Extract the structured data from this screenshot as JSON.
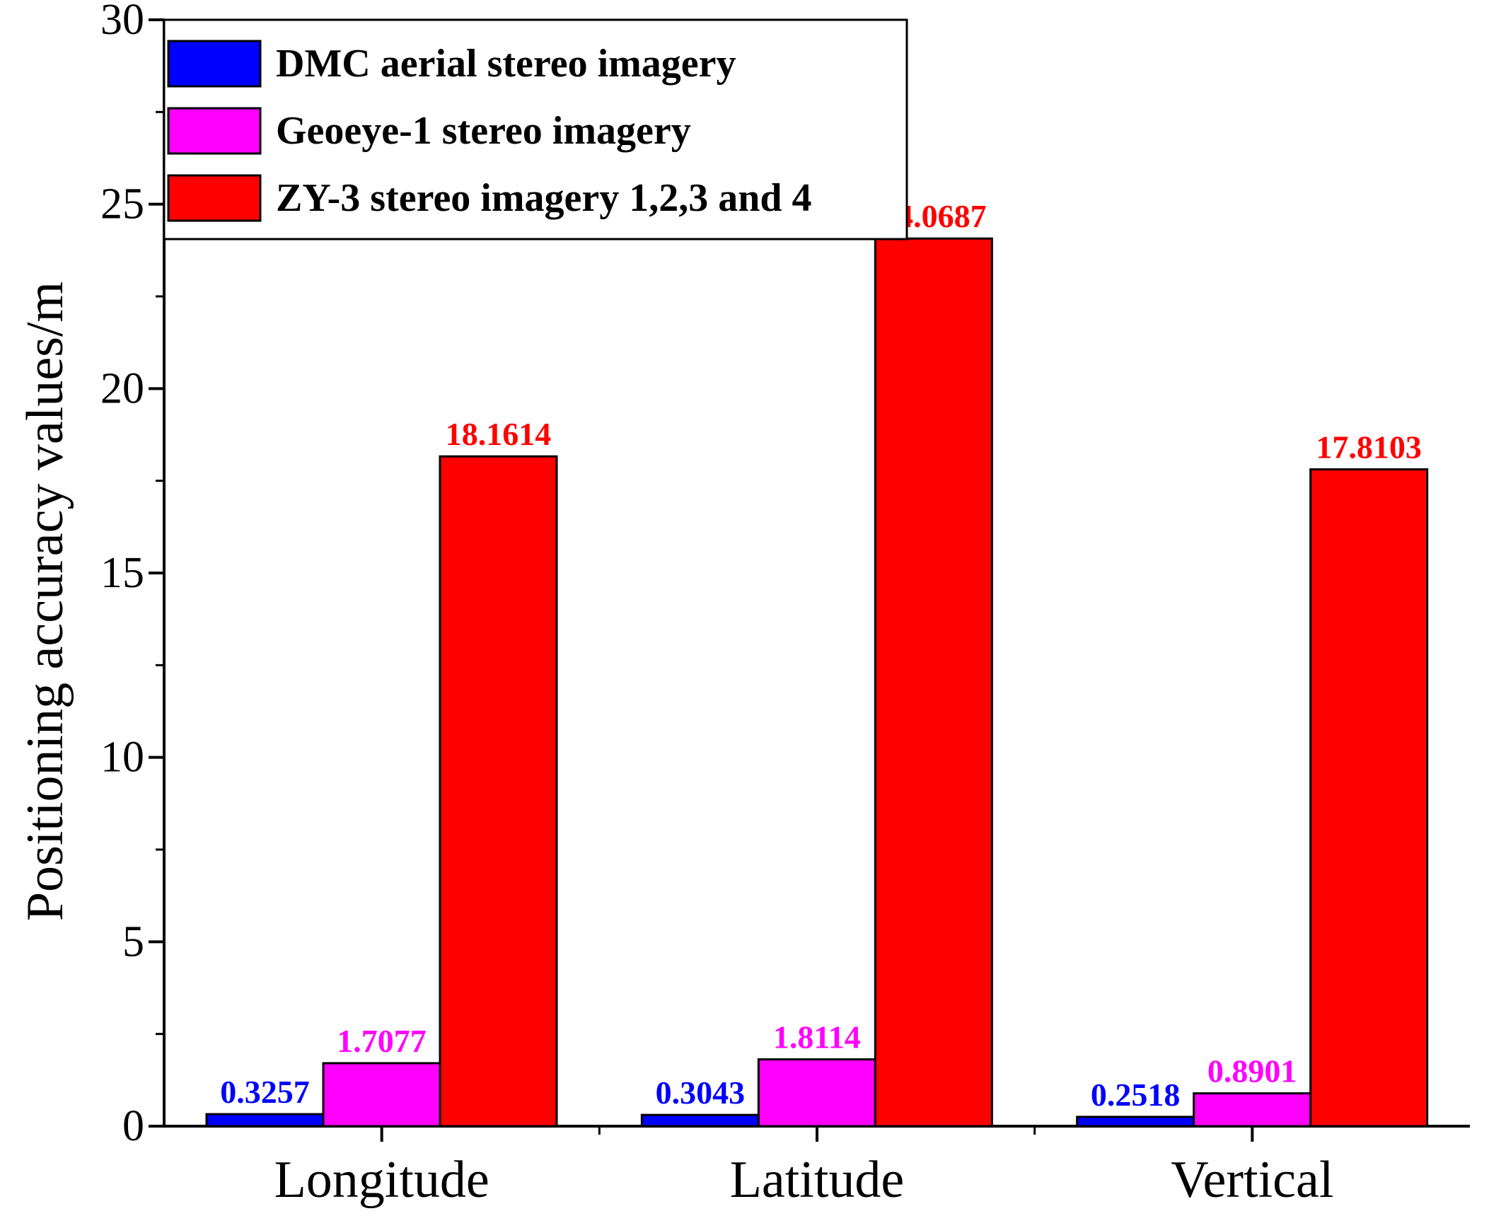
{
  "chart_data": {
    "type": "bar",
    "title": "",
    "xlabel": "",
    "ylabel": "Positioning accuracy values/m",
    "ylim": [
      0,
      30
    ],
    "yticks": [
      0,
      5,
      10,
      15,
      20,
      25,
      30
    ],
    "categories": [
      "Longitude",
      "Latitude",
      "Vertical"
    ],
    "series": [
      {
        "name": "DMC aerial stereo imagery",
        "color": "#0000ff",
        "values": [
          0.3257,
          0.3043,
          0.2518
        ],
        "labels": [
          "0.3257",
          "0.3043",
          "0.2518"
        ]
      },
      {
        "name": "Geoeye-1 stereo imagery",
        "color": "#ff00ff",
        "values": [
          1.7077,
          1.8114,
          0.8901
        ],
        "labels": [
          "1.7077",
          "1.8114",
          "0.8901"
        ]
      },
      {
        "name": "ZY-3 stereo imagery 1,2,3 and 4",
        "color": "#ff0000",
        "values": [
          18.1614,
          24.0687,
          17.8103
        ],
        "labels": [
          "18.1614",
          "24.0687",
          "17.8103"
        ]
      }
    ],
    "legend_position": "top-left",
    "grid": false
  }
}
